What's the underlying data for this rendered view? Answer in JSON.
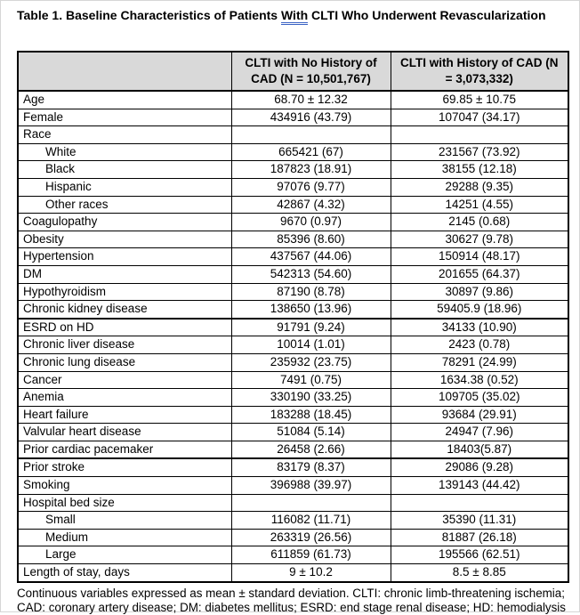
{
  "title": {
    "prefix": "Table 1. Baseline Characteristics of Patients ",
    "flagged_word": "With",
    "suffix": " CLTI Who Underwent Revascularization"
  },
  "colors": {
    "header_bg": "#d9d9d9",
    "border": "#000000",
    "grammar_underline": "#3b63c4"
  },
  "table": {
    "columns": [
      "",
      "CLTI with No History of CAD (N = 10,501,767)",
      "CLTI with History of CAD (N = 3,073,332)"
    ],
    "rows": [
      {
        "label": "Age",
        "indent": false,
        "thick_top": false,
        "values": [
          "68.70 ± 12.32",
          "69.85 ± 10.75"
        ]
      },
      {
        "label": "Female",
        "indent": false,
        "thick_top": false,
        "values": [
          "434916 (43.79)",
          "107047 (34.17)"
        ]
      },
      {
        "label": "Race",
        "indent": false,
        "thick_top": false,
        "values": [
          "",
          ""
        ]
      },
      {
        "label": "White",
        "indent": true,
        "thick_top": false,
        "values": [
          "665421 (67)",
          "231567 (73.92)"
        ]
      },
      {
        "label": "Black",
        "indent": true,
        "thick_top": false,
        "values": [
          "187823 (18.91)",
          "38155 (12.18)"
        ]
      },
      {
        "label": "Hispanic",
        "indent": true,
        "thick_top": false,
        "values": [
          "97076 (9.77)",
          "29288 (9.35)"
        ]
      },
      {
        "label": "Other races",
        "indent": true,
        "thick_top": false,
        "values": [
          "42867 (4.32)",
          "14251 (4.55)"
        ]
      },
      {
        "label": "Coagulopathy",
        "indent": false,
        "thick_top": false,
        "values": [
          "9670 (0.97)",
          "2145 (0.68)"
        ]
      },
      {
        "label": "Obesity",
        "indent": false,
        "thick_top": false,
        "values": [
          "85396 (8.60)",
          "30627 (9.78)"
        ]
      },
      {
        "label": "Hypertension",
        "indent": false,
        "thick_top": false,
        "values": [
          "437567 (44.06)",
          "150914 (48.17)"
        ]
      },
      {
        "label": "DM",
        "indent": false,
        "thick_top": false,
        "values": [
          "542313 (54.60)",
          "201655 (64.37)"
        ]
      },
      {
        "label": "Hypothyroidism",
        "indent": false,
        "thick_top": false,
        "values": [
          "87190 (8.78)",
          "30897 (9.86)"
        ]
      },
      {
        "label": "Chronic kidney disease",
        "indent": false,
        "thick_top": false,
        "values": [
          "138650 (13.96)",
          "59405.9 (18.96)"
        ]
      },
      {
        "label": "ESRD on HD",
        "indent": false,
        "thick_top": true,
        "values": [
          "91791 (9.24)",
          "34133 (10.90)"
        ]
      },
      {
        "label": "Chronic liver disease",
        "indent": false,
        "thick_top": false,
        "values": [
          "10014 (1.01)",
          "2423 (0.78)"
        ]
      },
      {
        "label": "Chronic lung disease",
        "indent": false,
        "thick_top": false,
        "values": [
          "235932 (23.75)",
          "78291 (24.99)"
        ]
      },
      {
        "label": "Cancer",
        "indent": false,
        "thick_top": false,
        "values": [
          "7491 (0.75)",
          "1634.38 (0.52)"
        ]
      },
      {
        "label": "Anemia",
        "indent": false,
        "thick_top": false,
        "values": [
          "330190 (33.25)",
          "109705 (35.02)"
        ]
      },
      {
        "label": "Heart failure",
        "indent": false,
        "thick_top": false,
        "values": [
          "183288 (18.45)",
          "93684 (29.91)"
        ]
      },
      {
        "label": "Valvular heart disease",
        "indent": false,
        "thick_top": false,
        "values": [
          "51084 (5.14)",
          "24947 (7.96)"
        ]
      },
      {
        "label": "Prior cardiac pacemaker",
        "indent": false,
        "thick_top": false,
        "values": [
          "26458 (2.66)",
          "18403(5.87)"
        ]
      },
      {
        "label": "Prior stroke",
        "indent": false,
        "thick_top": true,
        "values": [
          "83179 (8.37)",
          "29086 (9.28)"
        ]
      },
      {
        "label": "Smoking",
        "indent": false,
        "thick_top": false,
        "values": [
          "396988 (39.97)",
          "139143 (44.42)"
        ]
      },
      {
        "label": "Hospital bed size",
        "indent": false,
        "thick_top": false,
        "values": [
          "",
          ""
        ]
      },
      {
        "label": "Small",
        "indent": true,
        "thick_top": false,
        "values": [
          "116082 (11.71)",
          "35390 (11.31)"
        ]
      },
      {
        "label": "Medium",
        "indent": true,
        "thick_top": false,
        "values": [
          "263319 (26.56)",
          "81887 (26.18)"
        ]
      },
      {
        "label": "Large",
        "indent": true,
        "thick_top": false,
        "values": [
          "611859 (61.73)",
          "195566 (62.51)"
        ]
      },
      {
        "label": "Length of stay, days",
        "indent": false,
        "thick_top": false,
        "values": [
          "9 ± 10.2",
          "8.5 ± 8.85"
        ]
      }
    ]
  },
  "footer": {
    "text": "Continuous variables expressed as mean ± standard deviation. CLTI: chronic limb-threatening ischemia; CAD: coronary artery disease; DM: diabetes mellitus; ESRD: end stage renal disease; HD: hemodialysis"
  }
}
